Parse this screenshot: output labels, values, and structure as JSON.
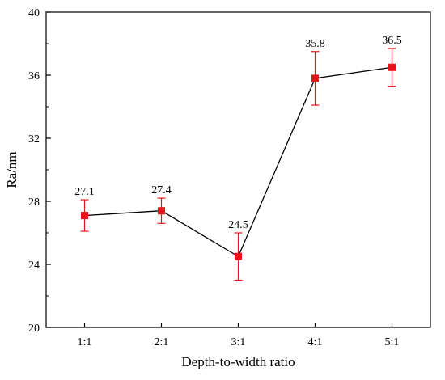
{
  "chart_data": {
    "type": "line",
    "categories": [
      "1:1",
      "2:1",
      "3:1",
      "4:1",
      "5:1"
    ],
    "values": [
      27.1,
      27.4,
      24.5,
      35.8,
      36.5
    ],
    "error_low": [
      26.1,
      26.6,
      23.0,
      34.1,
      35.3
    ],
    "error_high": [
      28.1,
      28.2,
      26.0,
      37.5,
      37.7
    ],
    "data_labels": [
      "27.1",
      "27.4",
      "24.5",
      "35.8",
      "36.5"
    ],
    "xlabel": "Depth-to-width ratio",
    "ylabel": "Ra/nm",
    "ylim": [
      20,
      40
    ],
    "yticks": [
      20,
      24,
      28,
      32,
      36,
      40
    ],
    "ytick_labels": [
      "20",
      "24",
      "28",
      "32",
      "36",
      "40"
    ],
    "grid": false,
    "colors": {
      "line": "#000000",
      "marker": "#e8141b",
      "error_bar": "#e8141b"
    }
  }
}
